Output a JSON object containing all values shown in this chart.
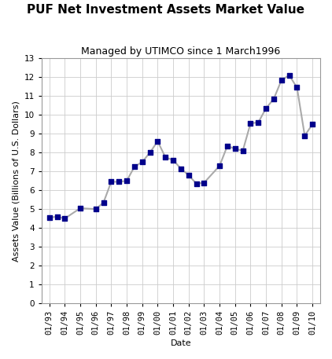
{
  "title": "PUF Net Investment Assets Market Value",
  "subtitle": "Managed by UTIMCO since 1 March1996",
  "xlabel": "Date",
  "ylabel": "Assets Value (Billions of U.S. Dollars)",
  "x_labels": [
    "01/93",
    "01/94",
    "01/95",
    "01/96",
    "01/97",
    "01/98",
    "01/99",
    "01/00",
    "01/01",
    "01/02",
    "01/03",
    "01/04",
    "01/05",
    "01/06",
    "01/07",
    "01/08",
    "01/09",
    "01/10"
  ],
  "x_tick_pos": [
    0,
    1,
    2,
    3,
    4,
    5,
    6,
    7,
    8,
    9,
    10,
    11,
    12,
    13,
    14,
    15,
    16,
    17
  ],
  "data_x": [
    0,
    0.5,
    1.0,
    2.0,
    3.0,
    3.5,
    4.0,
    4.5,
    5.0,
    5.5,
    6.0,
    6.5,
    7.0,
    7.5,
    8.0,
    8.5,
    9.0,
    9.5,
    10.0,
    11.0,
    11.5,
    12.0,
    12.5,
    13.0,
    13.5,
    14.0,
    14.5,
    15.0,
    15.5,
    16.0,
    16.5,
    17.0
  ],
  "data_y": [
    4.55,
    4.6,
    4.5,
    5.05,
    5.0,
    5.35,
    6.45,
    6.45,
    6.5,
    7.25,
    7.5,
    8.0,
    8.6,
    7.75,
    7.6,
    7.15,
    6.8,
    6.35,
    6.4,
    7.3,
    8.35,
    8.2,
    8.1,
    9.55,
    9.6,
    10.35,
    10.85,
    11.85,
    12.1,
    11.45,
    8.9,
    9.5
  ],
  "marker_color": "#00008B",
  "line_color": "#aaaaaa",
  "background_color": "#ffffff",
  "grid_color": "#cccccc",
  "ylim": [
    0,
    13
  ],
  "yticks": [
    0,
    1,
    2,
    3,
    4,
    5,
    6,
    7,
    8,
    9,
    10,
    11,
    12,
    13
  ],
  "title_fontsize": 11,
  "subtitle_fontsize": 9,
  "axis_label_fontsize": 8,
  "tick_fontsize": 7.5
}
